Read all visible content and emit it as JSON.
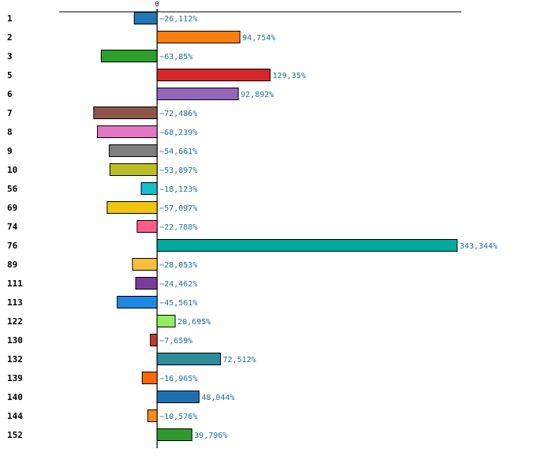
{
  "chart_data": {
    "type": "bar",
    "orientation": "horizontal",
    "zero_tick_label": "0",
    "categories": [
      "1",
      "2",
      "3",
      "5",
      "6",
      "7",
      "8",
      "9",
      "10",
      "56",
      "69",
      "74",
      "76",
      "89",
      "111",
      "113",
      "122",
      "130",
      "132",
      "139",
      "140",
      "144",
      "152"
    ],
    "values": [
      -26.112,
      94.754,
      -63.85,
      129.35,
      92.892,
      -72.486,
      -68.239,
      -54.661,
      -53.897,
      -18.123,
      -57.097,
      -22.788,
      343.344,
      -28.053,
      -24.462,
      -45.561,
      20.695,
      -7.659,
      72.512,
      -16.965,
      48.044,
      -10.576,
      39.796
    ],
    "value_labels": [
      "−26,112%",
      "94,754%",
      "−63,85%",
      "129,35%",
      "92,892%",
      "−72,486%",
      "−68,239%",
      "−54,661%",
      "−53,897%",
      "−18,123%",
      "−57,097%",
      "−22,788%",
      "343,344%",
      "−28,053%",
      "−24,462%",
      "−45,561%",
      "20,695%",
      "−7,659%",
      "72,512%",
      "−16,965%",
      "48,044%",
      "−10,576%",
      "39,796%"
    ],
    "colors": [
      "#1f77b4",
      "#ff7f0e",
      "#2ca02c",
      "#d62728",
      "#9467bd",
      "#8c564b",
      "#e377c2",
      "#7f7f7f",
      "#bcbd22",
      "#17becf",
      "#f1c40f",
      "#ff5c8a",
      "#00a9a0",
      "#fbbf3c",
      "#7a3d9a",
      "#1e88e5",
      "#90ee60",
      "#c0392b",
      "#2e8b9a",
      "#ff6a00",
      "#1f6fb0",
      "#ff8c1a",
      "#2e9a2e"
    ],
    "xlim": [
      -112,
      348
    ],
    "grid": false,
    "legend": "none"
  }
}
